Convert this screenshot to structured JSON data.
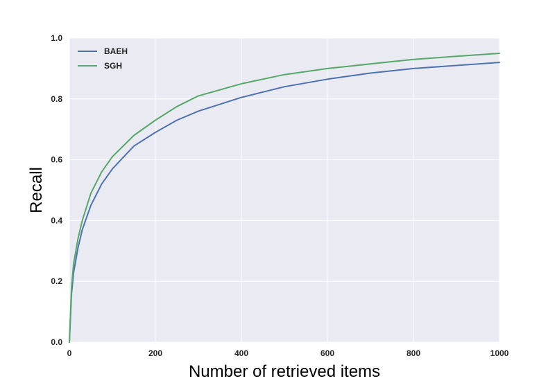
{
  "chart_data": {
    "type": "line",
    "title": "",
    "xlabel": "Number of retrieved items",
    "ylabel": "Recall",
    "xlim": [
      0,
      1000
    ],
    "ylim": [
      0.0,
      1.0
    ],
    "x_ticks": [
      0,
      200,
      400,
      600,
      800,
      1000
    ],
    "y_ticks": [
      0.0,
      0.2,
      0.4,
      0.6,
      0.8,
      1.0
    ],
    "x_tick_labels": [
      "0",
      "200",
      "400",
      "600",
      "800",
      "1000"
    ],
    "y_tick_labels": [
      "0.0",
      "0.2",
      "0.4",
      "0.6",
      "0.8",
      "1.0"
    ],
    "grid": true,
    "legend_position": "top-left",
    "background_color": "#EAEAF2",
    "grid_color": "#FFFFFF",
    "x": [
      0,
      5,
      10,
      20,
      30,
      50,
      75,
      100,
      150,
      200,
      250,
      300,
      400,
      500,
      600,
      700,
      800,
      900,
      1000
    ],
    "series": [
      {
        "name": "BAEH",
        "color": "#4C72B0",
        "values": [
          0.0,
          0.16,
          0.23,
          0.31,
          0.37,
          0.45,
          0.52,
          0.57,
          0.645,
          0.69,
          0.73,
          0.76,
          0.805,
          0.84,
          0.865,
          0.885,
          0.9,
          0.91,
          0.92
        ]
      },
      {
        "name": "SGH",
        "color": "#55A868",
        "values": [
          0.0,
          0.18,
          0.26,
          0.34,
          0.4,
          0.49,
          0.56,
          0.61,
          0.68,
          0.73,
          0.775,
          0.81,
          0.85,
          0.88,
          0.9,
          0.915,
          0.93,
          0.94,
          0.95
        ]
      }
    ]
  }
}
